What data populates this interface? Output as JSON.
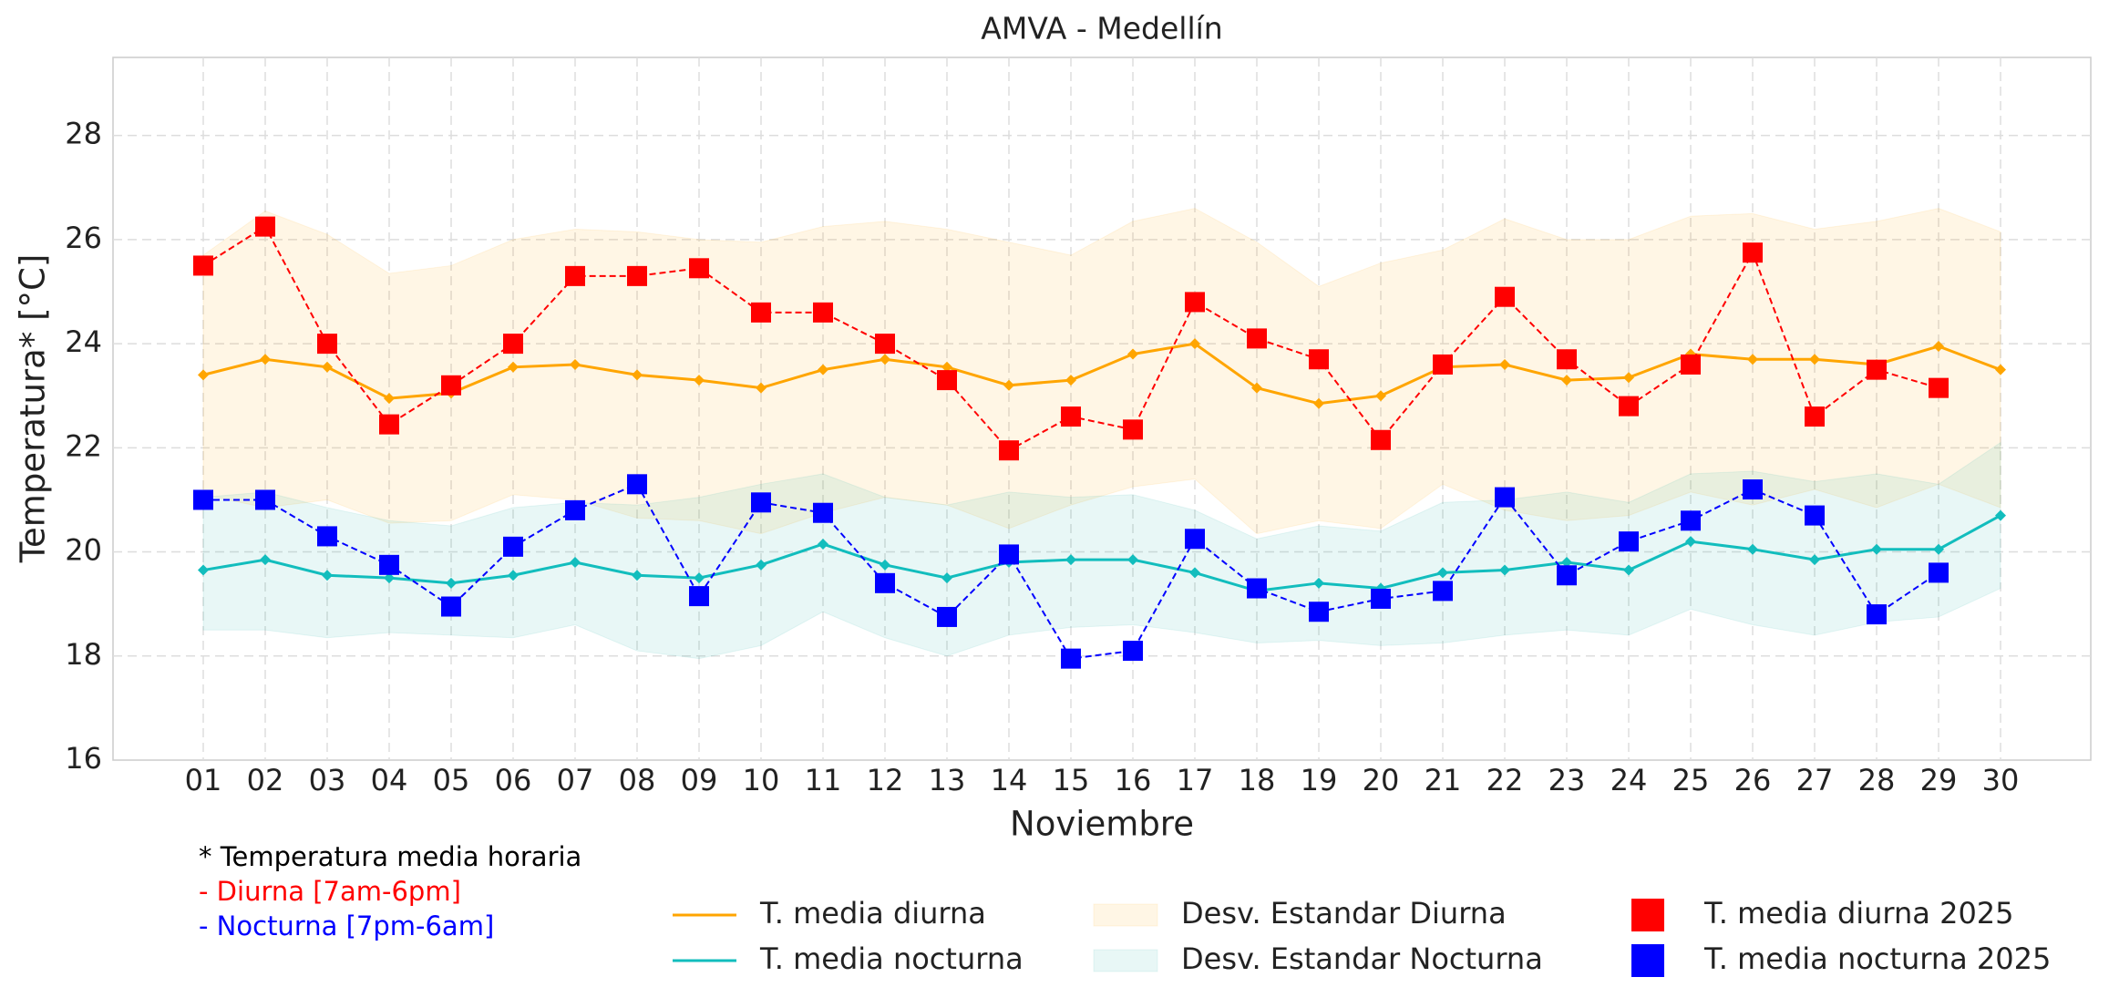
{
  "chart_data": {
    "type": "line",
    "title": "AMVA - Medellín",
    "x_label": "Noviembre",
    "y_label": "Temperatura* [°C]",
    "categories": [
      "01",
      "02",
      "03",
      "04",
      "05",
      "06",
      "07",
      "08",
      "09",
      "10",
      "11",
      "12",
      "13",
      "14",
      "15",
      "16",
      "17",
      "18",
      "19",
      "20",
      "21",
      "22",
      "23",
      "24",
      "25",
      "26",
      "27",
      "28",
      "29",
      "30"
    ],
    "ylim": [
      16,
      29.5
    ],
    "yticks": [
      16,
      18,
      20,
      22,
      24,
      26,
      28
    ],
    "grid": true,
    "notes": [
      {
        "text": "* Temperatura media horaria",
        "color": "#000000"
      },
      {
        "text": "- Diurna [7am-6pm]",
        "color": "#ff0000"
      },
      {
        "text": "- Nocturna [7pm-6am]",
        "color": "#0000ff"
      }
    ],
    "series": [
      {
        "name": "T. media diurna",
        "style": "line",
        "color": "#ffa500",
        "values": [
          23.4,
          23.7,
          23.55,
          22.95,
          23.05,
          23.55,
          23.6,
          23.4,
          23.3,
          23.15,
          23.5,
          23.7,
          23.55,
          23.2,
          23.3,
          23.8,
          24.0,
          23.15,
          22.85,
          23.0,
          23.55,
          23.6,
          23.3,
          23.35,
          23.8,
          23.7,
          23.7,
          23.6,
          23.95,
          23.5
        ]
      },
      {
        "name": "T. media nocturna",
        "style": "line",
        "color": "#12bdbd",
        "values": [
          19.65,
          19.85,
          19.55,
          19.5,
          19.4,
          19.55,
          19.8,
          19.55,
          19.5,
          19.75,
          20.15,
          19.75,
          19.5,
          19.8,
          19.85,
          19.85,
          19.6,
          19.25,
          19.4,
          19.3,
          19.6,
          19.65,
          19.8,
          19.65,
          20.2,
          20.05,
          19.85,
          20.05,
          20.05,
          20.7
        ]
      },
      {
        "name": "Desv. Estandar Diurna",
        "style": "band",
        "color": "#ffa500",
        "alpha": 0.1,
        "lower": [
          21.1,
          20.85,
          21.0,
          20.55,
          20.6,
          21.1,
          21.0,
          20.65,
          20.6,
          20.35,
          20.75,
          21.05,
          20.9,
          20.45,
          20.9,
          21.25,
          21.4,
          20.35,
          20.6,
          20.45,
          21.3,
          20.8,
          20.6,
          20.7,
          21.15,
          20.9,
          21.2,
          20.85,
          21.3,
          20.85
        ],
        "upper": [
          25.7,
          26.55,
          26.1,
          25.35,
          25.5,
          26.0,
          26.2,
          26.15,
          26.0,
          25.95,
          26.25,
          26.35,
          26.2,
          25.95,
          25.7,
          26.35,
          26.6,
          25.95,
          25.1,
          25.55,
          25.8,
          26.4,
          26.0,
          26.0,
          26.45,
          26.5,
          26.2,
          26.35,
          26.6,
          26.15
        ]
      },
      {
        "name": "Desv. Estandar Nocturna",
        "style": "band",
        "color": "#20b2aa",
        "alpha": 0.1,
        "lower": [
          18.5,
          18.5,
          18.35,
          18.45,
          18.4,
          18.35,
          18.6,
          18.1,
          17.95,
          18.2,
          18.85,
          18.35,
          18.0,
          18.4,
          18.55,
          18.6,
          18.45,
          18.25,
          18.3,
          18.2,
          18.25,
          18.4,
          18.5,
          18.4,
          18.9,
          18.6,
          18.4,
          18.65,
          18.75,
          19.3
        ],
        "upper": [
          21.05,
          21.15,
          20.85,
          20.6,
          20.5,
          20.85,
          20.95,
          20.9,
          21.05,
          21.3,
          21.5,
          21.05,
          20.9,
          21.15,
          21.05,
          21.1,
          20.8,
          20.25,
          20.5,
          20.4,
          20.95,
          21.0,
          21.15,
          20.95,
          21.5,
          21.55,
          21.35,
          21.5,
          21.3,
          22.1
        ]
      },
      {
        "name": "T. media diurna 2025",
        "style": "marker",
        "color": "#ff0000",
        "values": [
          25.5,
          26.25,
          24.0,
          22.45,
          23.2,
          24.0,
          25.3,
          25.3,
          25.45,
          24.6,
          24.6,
          24.0,
          23.3,
          21.95,
          22.6,
          22.35,
          24.8,
          24.1,
          23.7,
          22.15,
          23.6,
          24.9,
          23.7,
          22.8,
          23.6,
          25.75,
          22.6,
          23.5,
          23.15,
          null
        ]
      },
      {
        "name": "T. media nocturna 2025",
        "style": "marker",
        "color": "#0000ff",
        "values": [
          21.0,
          21.0,
          20.3,
          19.75,
          18.95,
          20.1,
          20.8,
          21.3,
          19.15,
          20.95,
          20.75,
          19.4,
          18.75,
          19.95,
          17.95,
          18.1,
          20.25,
          19.3,
          18.85,
          19.1,
          19.25,
          21.05,
          19.55,
          20.2,
          20.6,
          21.2,
          20.7,
          18.8,
          19.6,
          null
        ]
      }
    ]
  }
}
